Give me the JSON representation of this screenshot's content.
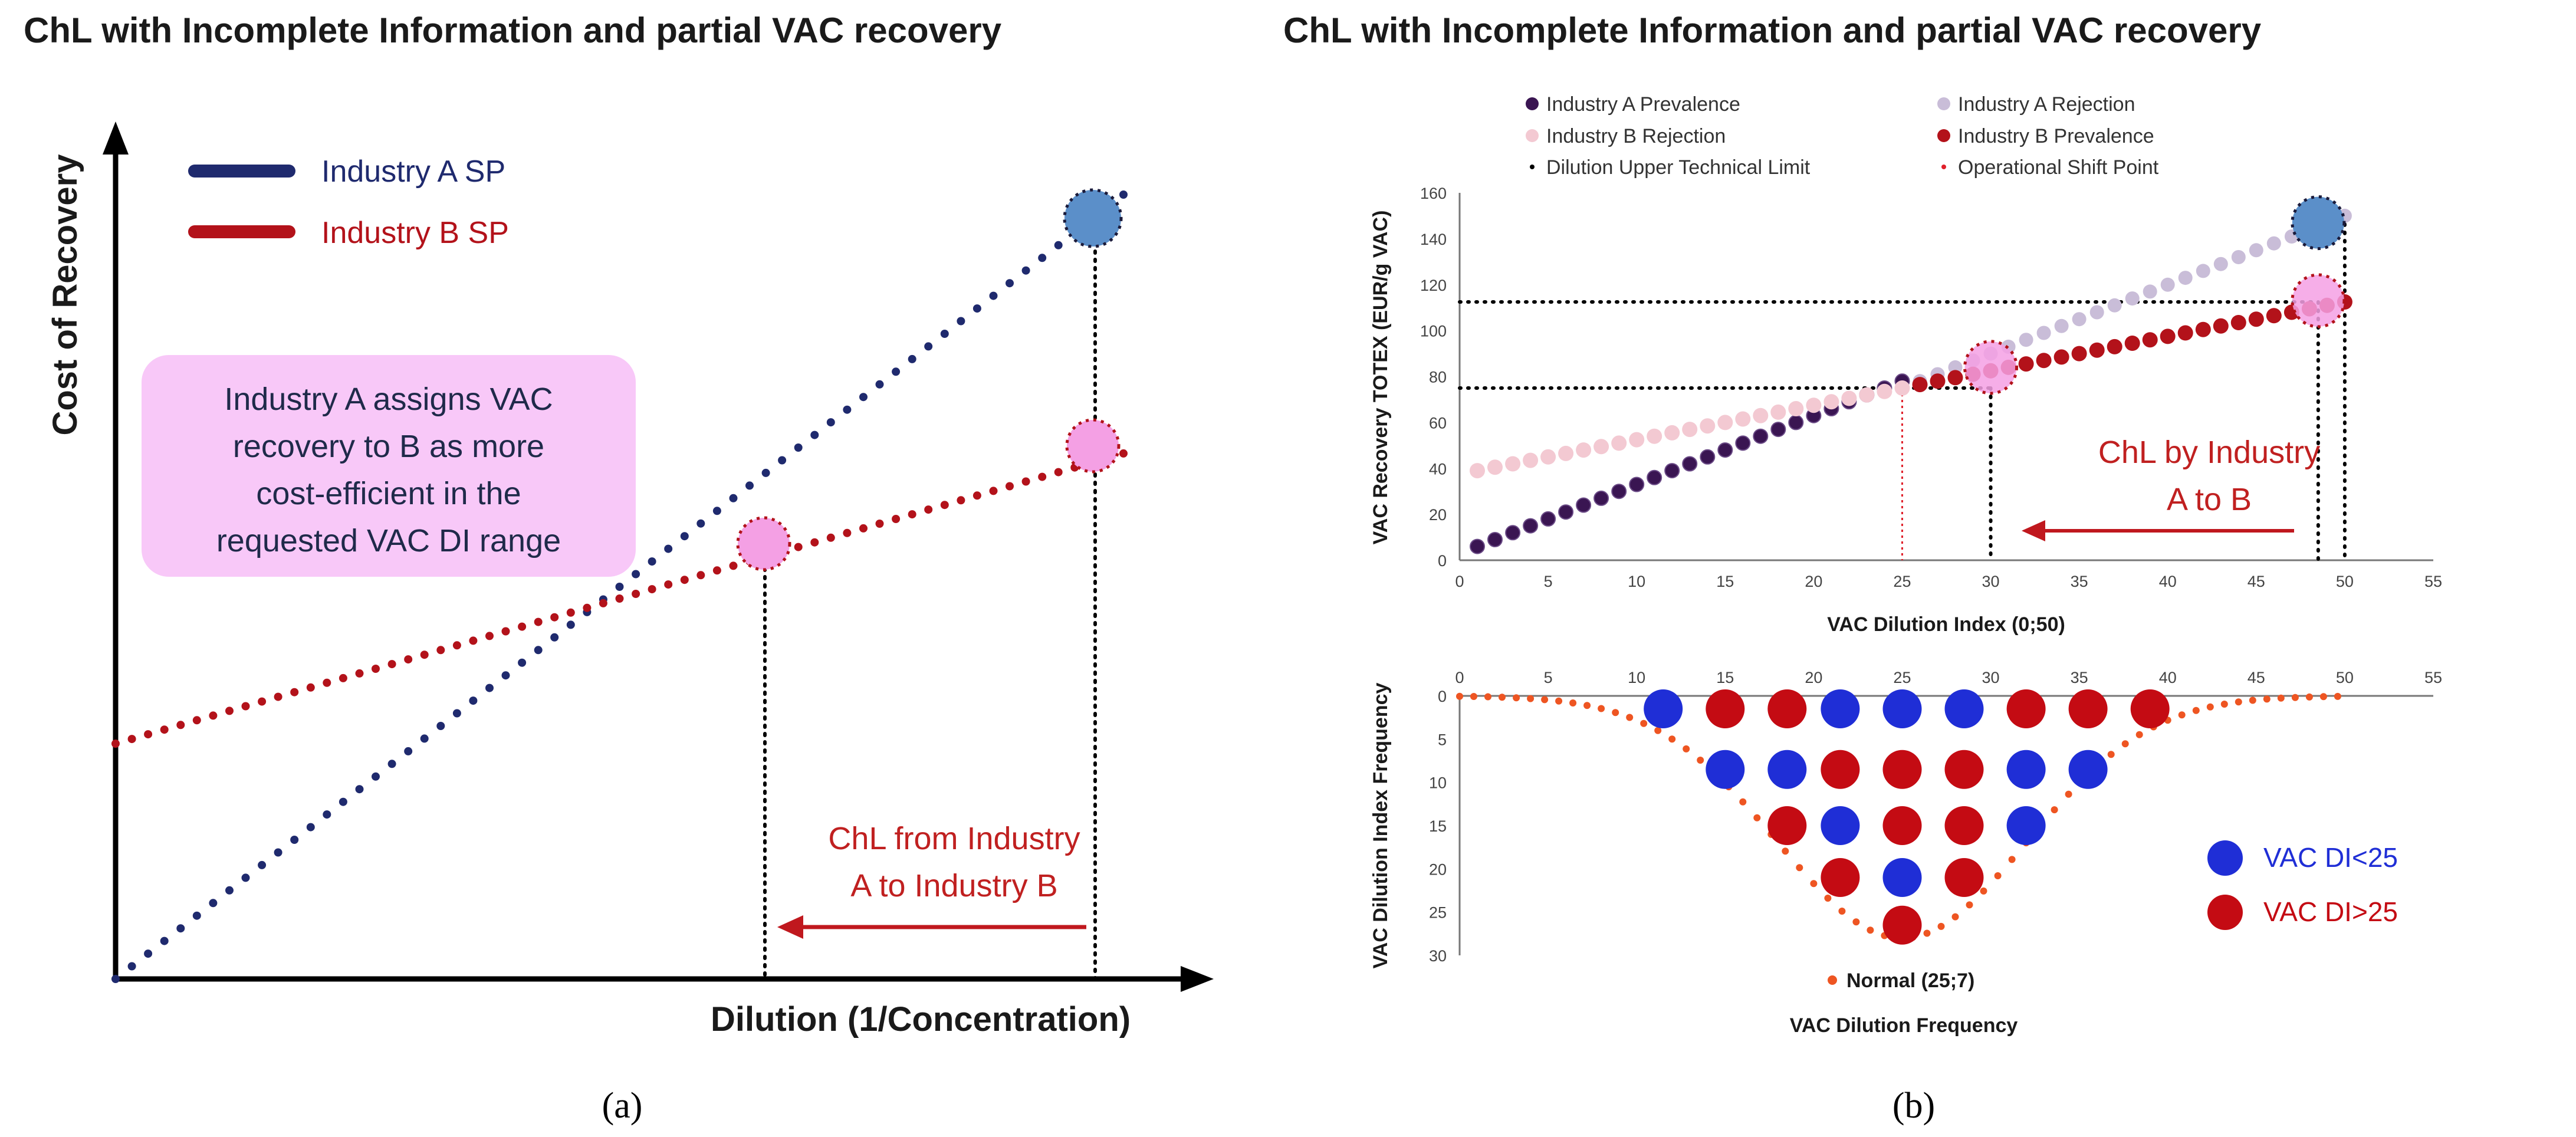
{
  "colors": {
    "navy": "#1f2a6e",
    "darkred": "#b3121a",
    "arrow_red": "#c0181e",
    "pink_light": "#f3c9d2",
    "lavender": "#c9bdd8",
    "callout_bg": "#f8c8f8",
    "highlight_blue": "#5b8fc9",
    "highlight_pink": "#f4a0e4",
    "dist_blue": "#1f2ed6",
    "dist_red": "#c40b13",
    "normal_orange": "#ee5522"
  },
  "panel_a": {
    "title": "ChL with Incomplete Information and partial VAC recovery",
    "label": "(a)",
    "y_axis_label": "Cost of Recovery",
    "x_axis_label": "Dilution (1/Concentration)",
    "legend": [
      "Industry A SP",
      "Industry B SP"
    ],
    "callout_lines": [
      "Industry A assigns VAC",
      "recovery to B as more",
      "cost-efficient in the",
      "requested VAC DI range"
    ],
    "chl_lines": [
      "ChL from Industry",
      "A to Industry B"
    ]
  },
  "panel_b": {
    "title": "ChL with Incomplete Information and partial VAC recovery",
    "label": "(b)",
    "legend": [
      "Industry A Prevalence",
      "Industry A Rejection",
      "Industry B Rejection",
      "Industry B Prevalence",
      "Dilution Upper Technical Limit",
      "Operational Shift Point"
    ],
    "chl_lines": [
      "ChL by Industry",
      "A to B"
    ],
    "dist_legend": [
      "VAC DI<25",
      "VAC DI>25"
    ],
    "normal_label": "Normal (25;7)",
    "top_chart_ylabel": "VAC Recovery TOTEX (EUR/g VAC)",
    "top_chart_xlabel": "VAC Dilution Index (0;50)",
    "bottom_chart_ylabel": "VAC Dilution Index Frequency",
    "bottom_chart_xlabel": "VAC Dilution Frequency"
  },
  "chart_data": [
    {
      "type": "line",
      "title": "ChL with Incomplete Information and partial VAC recovery",
      "xlabel": "Dilution (1/Concentration)",
      "ylabel": "Cost of Recovery",
      "axes_unlabeled": true,
      "series": [
        {
          "name": "Industry A SP",
          "x": [
            0,
            1
          ],
          "y": [
            0.0,
            1.0
          ]
        },
        {
          "name": "Industry B SP",
          "x": [
            0,
            1
          ],
          "y": [
            0.3,
            0.67
          ]
        }
      ],
      "highlights": [
        {
          "series": "Industry A SP",
          "x": 0.92
        },
        {
          "series": "Industry B SP",
          "x": 0.92
        },
        {
          "series": "Industry B SP",
          "x": 0.62
        }
      ]
    },
    {
      "type": "scatter",
      "xlabel": "VAC Dilution Index (0;50)",
      "ylabel": "VAC Recovery TOTEX (EUR/g VAC)",
      "xlim": [
        0,
        55
      ],
      "ylim": [
        0,
        160
      ],
      "xticks": [
        0,
        5,
        10,
        15,
        20,
        25,
        30,
        35,
        40,
        45,
        50,
        55
      ],
      "yticks": [
        0,
        20,
        40,
        60,
        80,
        100,
        120,
        140,
        160
      ],
      "series": [
        {
          "name": "Industry A Prevalence",
          "range": [
            1,
            25
          ],
          "y0": 3,
          "slope": 3
        },
        {
          "name": "Industry A Rejection",
          "range": [
            26,
            50
          ],
          "y0": 0,
          "slope": 3
        },
        {
          "name": "Industry B Rejection",
          "range": [
            1,
            25
          ],
          "y0": 37.5,
          "slope": 1.5
        },
        {
          "name": "Industry B Prevalence",
          "range": [
            26,
            50
          ],
          "y0": 37.5,
          "slope": 1.5
        }
      ],
      "reference_lines": [
        {
          "name": "Dilution Upper Technical Limit",
          "x": 30,
          "y": 75
        },
        {
          "name": "Dilution Upper Technical Limit",
          "x": 48.5,
          "y": 112.5
        },
        {
          "name": "Dilution Upper Technical Limit",
          "x": 50
        },
        {
          "name": "Operational Shift Point",
          "x": 25
        }
      ],
      "highlights": [
        {
          "x": 30,
          "y": 84,
          "color": "pink"
        },
        {
          "x": 48.5,
          "y": 147,
          "color": "blue"
        },
        {
          "x": 48.5,
          "y": 113,
          "color": "pink"
        }
      ]
    },
    {
      "type": "scatter",
      "xlabel": "VAC Dilution Frequency",
      "ylabel": "VAC Dilution Index Frequency",
      "xlim": [
        0,
        55
      ],
      "ylim": [
        0,
        30
      ],
      "xticks": [
        0,
        5,
        10,
        15,
        20,
        25,
        30,
        35,
        40,
        45,
        50,
        55
      ],
      "yticks": [
        0,
        5,
        10,
        15,
        20,
        25,
        30
      ],
      "normal": {
        "name": "Normal (25;7)",
        "mean": 25,
        "sd": 7
      },
      "series": [
        {
          "name": "VAC DI<25",
          "points": [
            [
              11.5,
              1.5
            ],
            [
              15,
              8.5
            ],
            [
              18.5,
              8.5
            ],
            [
              21.5,
              1.5
            ],
            [
              21.5,
              15
            ],
            [
              25,
              1.5
            ],
            [
              25,
              21
            ],
            [
              28.5,
              1.5
            ],
            [
              32,
              8.5
            ],
            [
              32,
              15
            ],
            [
              35.5,
              8.5
            ]
          ]
        },
        {
          "name": "VAC DI>25",
          "points": [
            [
              15,
              1.5
            ],
            [
              18.5,
              1.5
            ],
            [
              18.5,
              15
            ],
            [
              21.5,
              8.5
            ],
            [
              21.5,
              21
            ],
            [
              25,
              8.5
            ],
            [
              25,
              15
            ],
            [
              25,
              26.5
            ],
            [
              28.5,
              8.5
            ],
            [
              28.5,
              15
            ],
            [
              28.5,
              21
            ],
            [
              32,
              1.5
            ],
            [
              35.5,
              1.5
            ],
            [
              39,
              1.5
            ]
          ]
        }
      ]
    }
  ]
}
